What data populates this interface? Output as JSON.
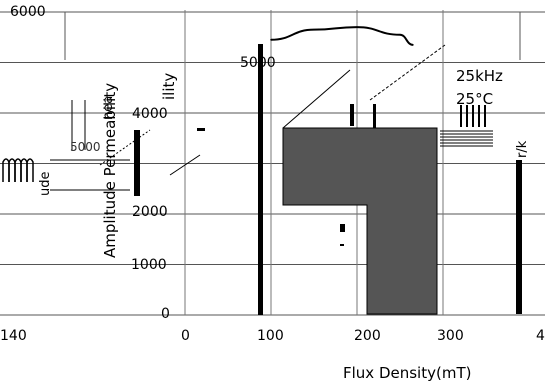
{
  "chart_data": {
    "type": "line",
    "title": "",
    "xlabel": "Flux Density(mT)",
    "ylabel": "Amplitude Permeability",
    "xlim": [
      -50,
      420
    ],
    "ylim": [
      0,
      6000
    ],
    "x_ticks": [
      "0",
      "100",
      "200",
      "300"
    ],
    "y_ticks": [
      "0",
      "1000",
      "2000",
      "3000",
      "4000",
      "5000",
      "6000"
    ],
    "grid": true,
    "annotations": [
      "25kHz",
      "25°C"
    ],
    "series": [
      {
        "values": [
          {
            "x": 100,
            "y": 5450
          },
          {
            "x": 150,
            "y": 5650
          },
          {
            "x": 200,
            "y": 5700
          },
          {
            "x": 250,
            "y": 5550
          },
          {
            "x": 265,
            "y": 5350
          }
        ]
      }
    ],
    "fragments": {
      "left_axis_tick": "140",
      "right_axis_tick": "4",
      "overlay_tick": "5000",
      "overlay_axis_text": "ude",
      "overlay_axis_text2": "nea",
      "overlay_axis_text3": "ility",
      "overlay_axis_text4": "r/k"
    }
  }
}
